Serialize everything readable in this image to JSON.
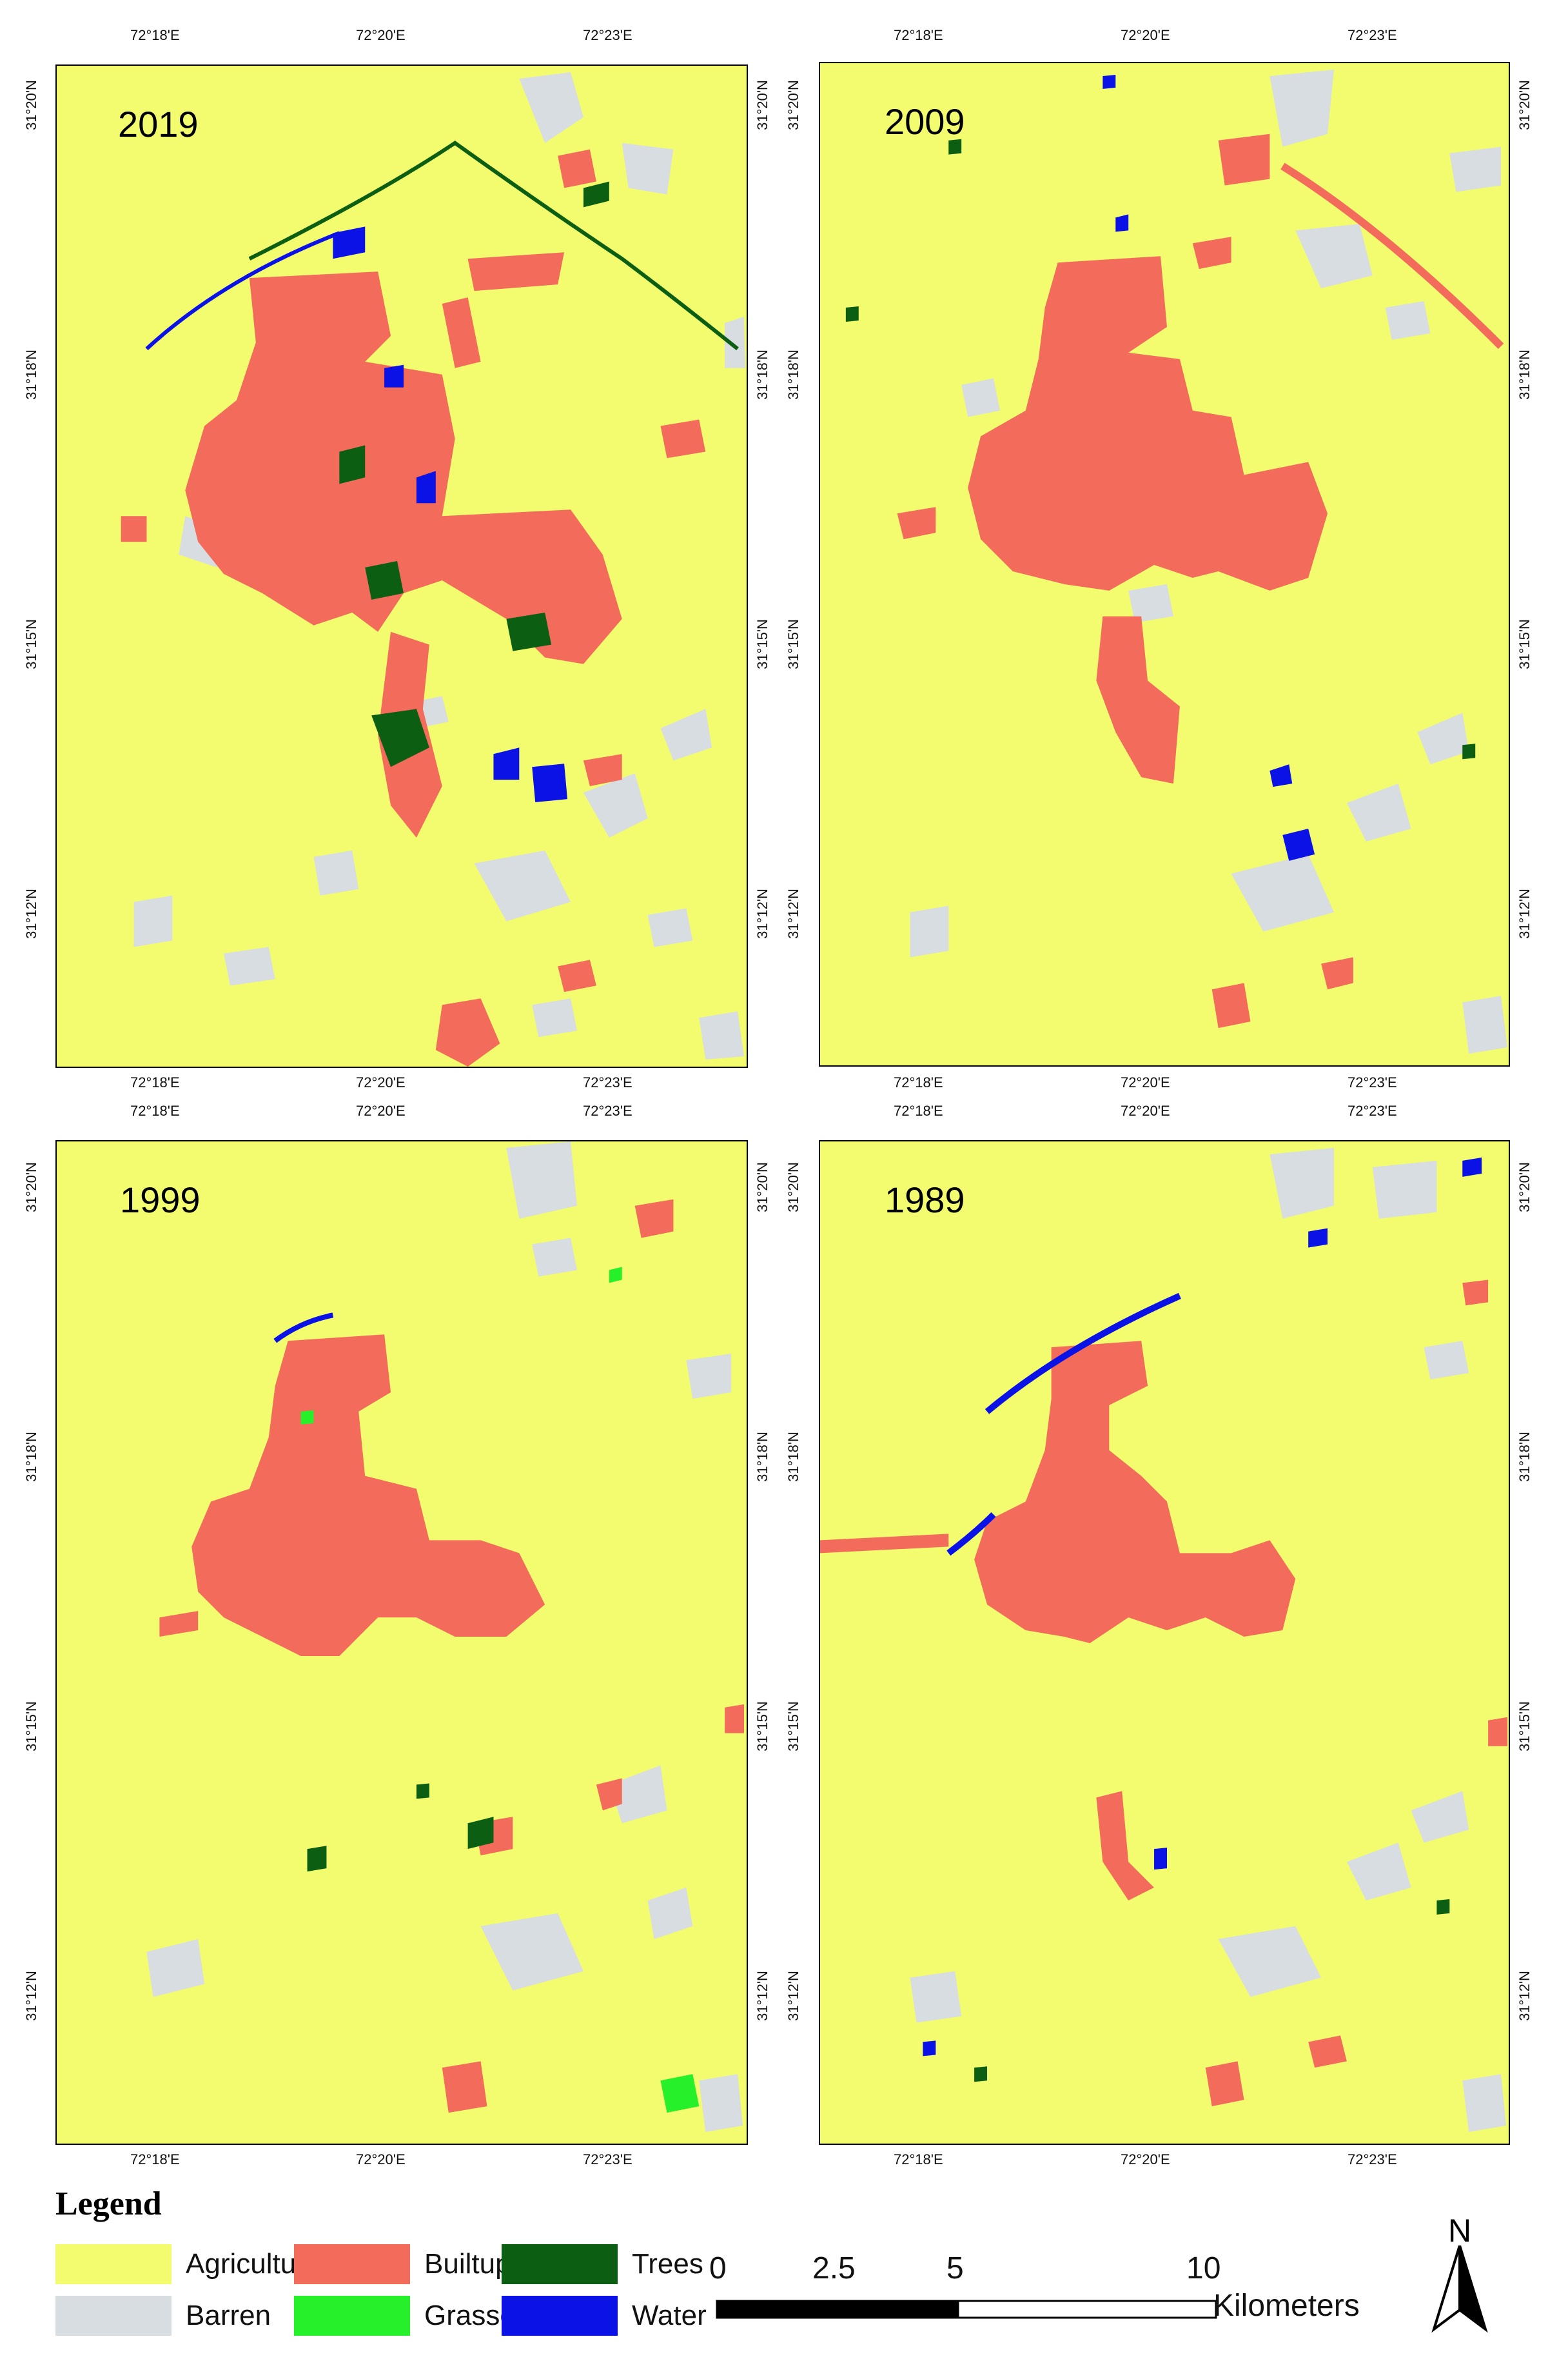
{
  "map_data": {
    "panels": [
      {
        "id": "2019",
        "year": "2019",
        "top_ticks": [
          "72°18'E",
          "72°20'E",
          "72°23'E"
        ],
        "bottom_ticks": [
          "72°18'E",
          "72°20'E",
          "72°23'E"
        ],
        "left_ticks": [
          "31°20'N",
          "31°18'N",
          "31°15'N",
          "31°12'N"
        ],
        "right_ticks": [
          "31°20'N",
          "31°18'N",
          "31°15'N",
          "31°12'N"
        ]
      },
      {
        "id": "2009",
        "year": "2009",
        "top_ticks": [
          "72°18'E",
          "72°20'E",
          "72°23'E"
        ],
        "bottom_ticks": [
          "72°18'E",
          "72°20'E",
          "72°23'E"
        ],
        "left_ticks": [
          "31°20'N",
          "31°18'N",
          "31°15'N",
          "31°12'N"
        ],
        "right_ticks": [
          "31°20'N",
          "31°18'N",
          "31°15'N",
          "31°12'N"
        ]
      },
      {
        "id": "1999",
        "year": "1999",
        "top_ticks": [
          "72°18'E",
          "72°20'E",
          "72°23'E"
        ],
        "bottom_ticks": [
          "72°18'E",
          "72°20'E",
          "72°23'E"
        ],
        "left_ticks": [
          "31°20'N",
          "31°18'N",
          "31°15'N",
          "31°12'N"
        ],
        "right_ticks": [
          "31°20'N",
          "31°18'N",
          "31°15'N",
          "31°12'N"
        ]
      },
      {
        "id": "1989",
        "year": "1989",
        "top_ticks": [
          "72°18'E",
          "72°20'E",
          "72°23'E"
        ],
        "bottom_ticks": [
          "72°18'E",
          "72°20'E",
          "72°23'E"
        ],
        "left_ticks": [
          "31°20'N",
          "31°18'N",
          "31°15'N",
          "31°12'N"
        ],
        "right_ticks": [
          "31°20'N",
          "31°18'N",
          "31°15'N",
          "31°12'N"
        ]
      }
    ],
    "legend": {
      "title": "Legend",
      "items": [
        {
          "label": "Agriculture",
          "color": "#f2fc6e"
        },
        {
          "label": "Builtup",
          "color": "#f36b5b"
        },
        {
          "label": "Trees",
          "color": "#0b5e12"
        },
        {
          "label": "Barren",
          "color": "#d7dde0"
        },
        {
          "label": "Grasses",
          "color": "#26f02a"
        },
        {
          "label": "Water",
          "color": "#0a12e6"
        }
      ]
    },
    "scale_bar": {
      "labels": [
        "0",
        "2.5",
        "5",
        "10"
      ],
      "unit": "Kilometers"
    },
    "north_arrow": {
      "label": "N"
    }
  }
}
